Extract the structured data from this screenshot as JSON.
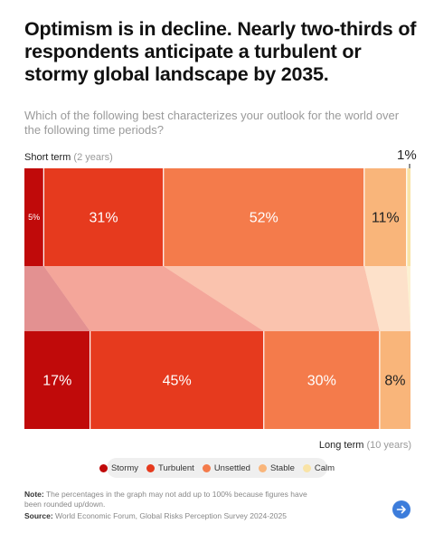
{
  "title": "Optimism is in decline. Nearly two-thirds of respondents anticipate a turbulent or stormy global landscape by 2035.",
  "subtitle": "Which of the following best characterizes your outlook for the world over the following time periods?",
  "chart_data": {
    "type": "bar",
    "orientation": "horizontal-stacked",
    "categories": [
      "Stormy",
      "Turbulent",
      "Unsettled",
      "Stable",
      "Calm"
    ],
    "colors": [
      "#c00a0a",
      "#e63a1e",
      "#f47b4b",
      "#f9b57a",
      "#f9e3a6"
    ],
    "series": [
      {
        "name": "Short term",
        "qualifier": "(2 years)",
        "values": [
          5,
          31,
          52,
          11,
          1
        ],
        "labels": [
          "5%",
          "31%",
          "52%",
          "11%",
          "1%"
        ]
      },
      {
        "name": "Long term",
        "qualifier": "(10 years)",
        "values": [
          17,
          45,
          30,
          8,
          0
        ],
        "labels": [
          "17%",
          "45%",
          "30%",
          "8%",
          ""
        ]
      }
    ],
    "legend": [
      "Stormy",
      "Turbulent",
      "Unsettled",
      "Stable",
      "Calm"
    ],
    "legend_position": "bottom-center"
  },
  "note_label": "Note:",
  "note_text": "The percentages in the graph may not add up to 100% because figures have been rounded up/down.",
  "source_label": "Source:",
  "source_text": "World Economic Forum, Global Risks Perception Survey 2024-2025",
  "icons": {
    "next": "arrow-right-icon"
  }
}
